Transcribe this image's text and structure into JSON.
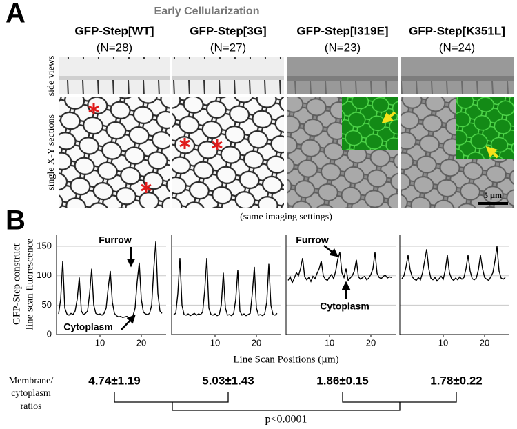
{
  "panel_a": {
    "label": "A",
    "title": "Early Cellularization",
    "columns": [
      {
        "name": "GFP-Step[WT]",
        "n": "(N=28)"
      },
      {
        "name": "GFP-Step[3G]",
        "n": "(N=27)"
      },
      {
        "name": "GFP-Step[I319E]",
        "n": "(N=23)"
      },
      {
        "name": "GFP-Step[K351L]",
        "n": "(N=24)"
      }
    ],
    "row_labels": [
      "side views",
      "single X-Y sections"
    ],
    "scale_bar": "5 µm",
    "note": "(same imaging settings)"
  },
  "panel_b": {
    "label": "B",
    "ylabel": [
      "GFP-Step construct",
      "line scan fluorescence"
    ],
    "xlabel": "Line Scan Positions (µm)"
  },
  "chart_data": [
    {
      "type": "line",
      "xlim": [
        0,
        26
      ],
      "xticks": [
        10,
        20
      ],
      "ylim": [
        0,
        170
      ],
      "yticks": [
        0,
        50,
        100,
        150
      ],
      "grid": true,
      "annotations": [
        "Furrow",
        "Cytoplasm"
      ],
      "x": [
        0,
        0.5,
        1,
        1.5,
        2,
        2.5,
        3,
        3.5,
        4,
        4.5,
        5,
        5.5,
        6,
        6.5,
        7,
        7.5,
        8,
        8.5,
        9,
        9.5,
        10,
        10.5,
        11,
        11.5,
        12,
        12.5,
        13,
        13.5,
        14,
        14.5,
        15,
        15.5,
        16,
        16.5,
        17,
        17.5,
        18,
        18.5,
        19,
        19.5,
        20,
        20.5,
        21,
        21.5,
        22,
        22.5,
        23,
        23.5,
        24,
        24.5,
        25
      ],
      "series": [
        {
          "color": "#000000",
          "values": [
            35,
            60,
            125,
            45,
            35,
            33,
            36,
            34,
            40,
            60,
            97,
            40,
            34,
            36,
            40,
            70,
            112,
            50,
            36,
            34,
            35,
            33,
            36,
            45,
            80,
            108,
            55,
            36,
            32,
            30,
            31,
            29,
            30,
            31,
            29,
            30,
            32,
            45,
            90,
            122,
            60,
            38,
            35,
            34,
            36,
            50,
            110,
            158,
            70,
            40,
            36
          ]
        }
      ]
    },
    {
      "type": "line",
      "xlim": [
        0,
        26
      ],
      "xticks": [
        10,
        20
      ],
      "ylim": [
        0,
        170
      ],
      "yticks": [
        0,
        50,
        100,
        150
      ],
      "grid": true,
      "annotations": [],
      "x": [
        0,
        0.5,
        1,
        1.5,
        2,
        2.5,
        3,
        3.5,
        4,
        4.5,
        5,
        5.5,
        6,
        6.5,
        7,
        7.5,
        8,
        8.5,
        9,
        9.5,
        10,
        10.5,
        11,
        11.5,
        12,
        12.5,
        13,
        13.5,
        14,
        14.5,
        15,
        15.5,
        16,
        16.5,
        17,
        17.5,
        18,
        18.5,
        19,
        19.5,
        20,
        20.5,
        21,
        21.5,
        22,
        22.5,
        23,
        23.5,
        24,
        24.5,
        25
      ],
      "series": [
        {
          "color": "#000000",
          "values": [
            34,
            36,
            70,
            130,
            50,
            34,
            33,
            35,
            32,
            34,
            36,
            33,
            35,
            34,
            38,
            75,
            130,
            45,
            34,
            33,
            35,
            32,
            34,
            50,
            105,
            45,
            33,
            34,
            32,
            36,
            60,
            110,
            40,
            33,
            35,
            32,
            34,
            36,
            70,
            115,
            45,
            33,
            34,
            32,
            35,
            55,
            120,
            50,
            34,
            33,
            36
          ]
        }
      ]
    },
    {
      "type": "line",
      "xlim": [
        0,
        26
      ],
      "xticks": [
        10,
        20
      ],
      "ylim": [
        0,
        170
      ],
      "yticks": [
        0,
        50,
        100,
        150
      ],
      "grid": true,
      "annotations": [
        "Furrow",
        "Cytoplasm"
      ],
      "x": [
        0,
        0.5,
        1,
        1.5,
        2,
        2.5,
        3,
        3.5,
        4,
        4.5,
        5,
        5.5,
        6,
        6.5,
        7,
        7.5,
        8,
        8.5,
        9,
        9.5,
        10,
        10.5,
        11,
        11.5,
        12,
        12.5,
        13,
        13.5,
        14,
        14.5,
        15,
        15.5,
        16,
        16.5,
        17,
        17.5,
        18,
        18.5,
        19,
        19.5,
        20,
        20.5,
        21,
        21.5,
        22,
        22.5,
        23,
        23.5,
        24,
        24.5,
        25
      ],
      "series": [
        {
          "color": "#000000",
          "values": [
            92,
            98,
            88,
            96,
            105,
            100,
            112,
            130,
            98,
            93,
            97,
            90,
            99,
            95,
            104,
            112,
            125,
            100,
            94,
            92,
            98,
            102,
            95,
            108,
            128,
            140,
            105,
            97,
            112,
            92,
            96,
            100,
            108,
            127,
            98,
            94,
            97,
            99,
            93,
            96,
            102,
            112,
            140,
            104,
            97,
            95,
            99,
            101,
            96,
            98,
            97
          ]
        }
      ]
    },
    {
      "type": "line",
      "xlim": [
        0,
        26
      ],
      "xticks": [
        10,
        20
      ],
      "ylim": [
        0,
        170
      ],
      "yticks": [
        0,
        50,
        100,
        150
      ],
      "grid": true,
      "annotations": [],
      "x": [
        0,
        0.5,
        1,
        1.5,
        2,
        2.5,
        3,
        3.5,
        4,
        4.5,
        5,
        5.5,
        6,
        6.5,
        7,
        7.5,
        8,
        8.5,
        9,
        9.5,
        10,
        10.5,
        11,
        11.5,
        12,
        12.5,
        13,
        13.5,
        14,
        14.5,
        15,
        15.5,
        16,
        16.5,
        17,
        17.5,
        18,
        18.5,
        19,
        19.5,
        20,
        20.5,
        21,
        21.5,
        22,
        22.5,
        23,
        23.5,
        24,
        24.5,
        25
      ],
      "series": [
        {
          "color": "#000000",
          "values": [
            95,
            100,
            115,
            135,
            110,
            98,
            94,
            92,
            97,
            93,
            105,
            125,
            145,
            112,
            96,
            93,
            97,
            91,
            95,
            99,
            94,
            110,
            135,
            105,
            95,
            92,
            96,
            93,
            98,
            94,
            97,
            112,
            135,
            108,
            95,
            93,
            96,
            110,
            135,
            112,
            97,
            94,
            92,
            98,
            105,
            125,
            150,
            108,
            96,
            94,
            97
          ]
        }
      ]
    }
  ],
  "ratios": {
    "label": [
      "Membrane/",
      "cytoplasm",
      "ratios"
    ],
    "values": [
      "4.74±1.19",
      "5.03±1.43",
      "1.86±0.15",
      "1.78±0.22"
    ],
    "p_value": "p<0.0001"
  }
}
